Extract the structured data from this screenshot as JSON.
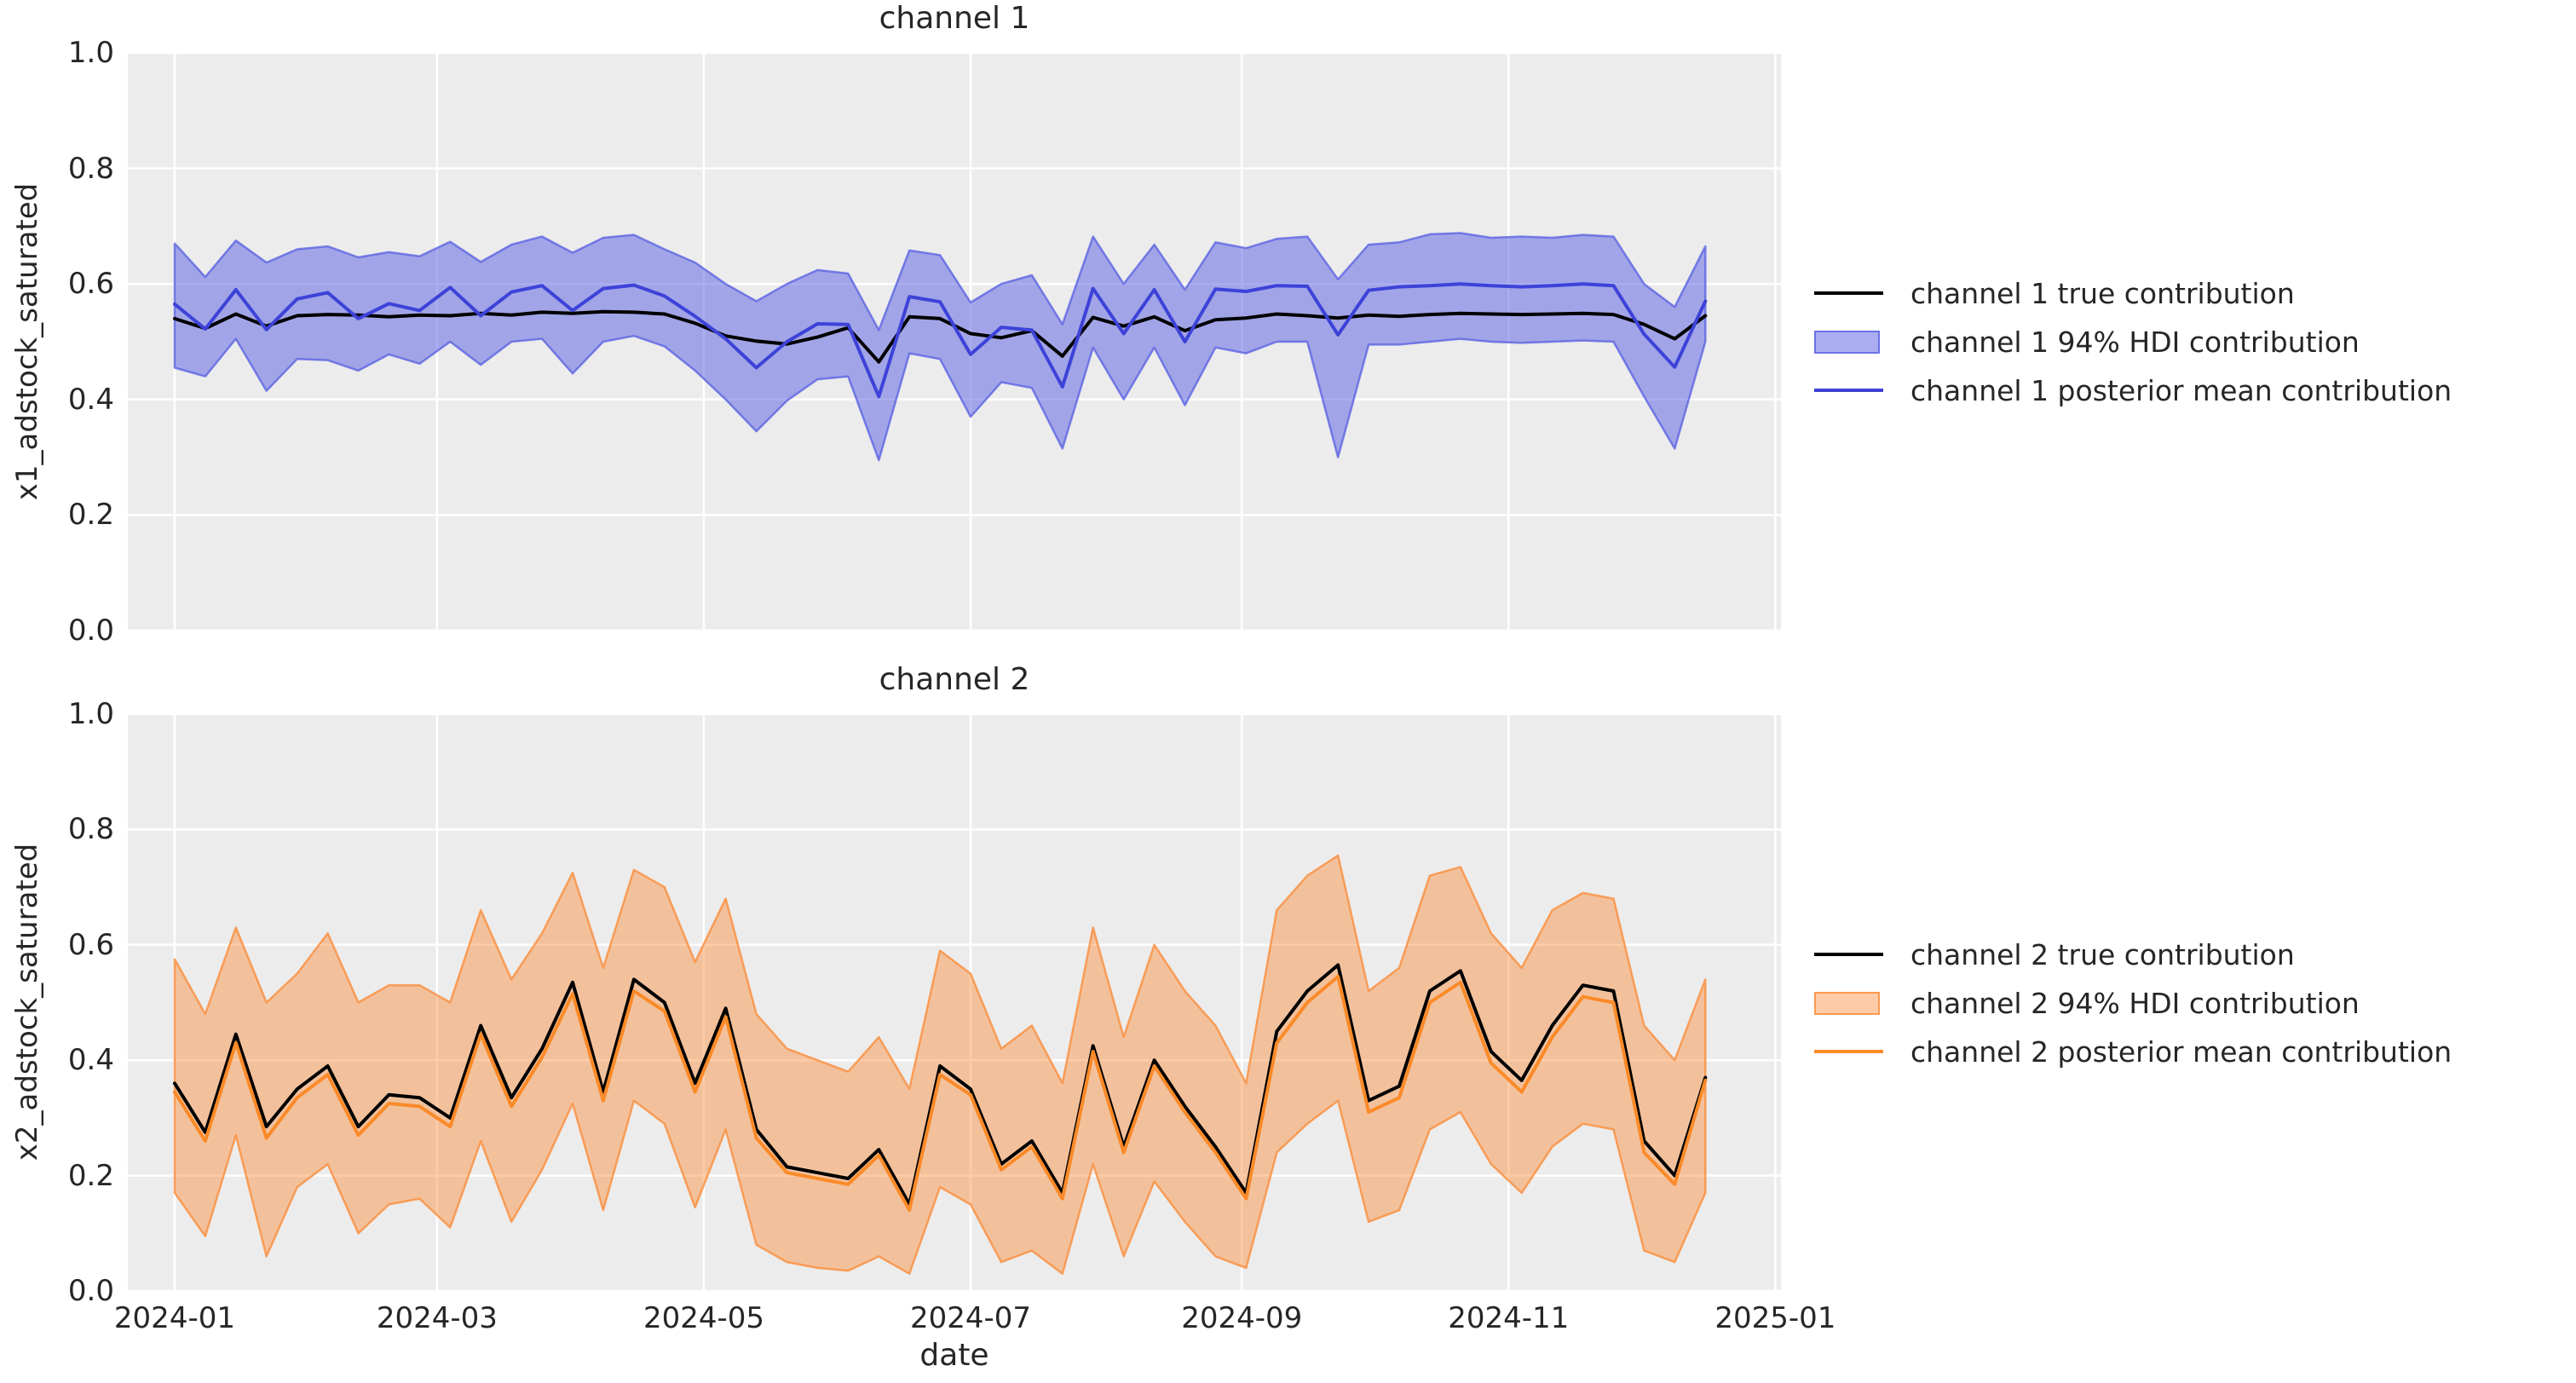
{
  "chart_data": [
    {
      "type": "line",
      "title": "channel 1",
      "ylabel": "x1_adstock_saturated",
      "ylim": [
        0.0,
        1.0
      ],
      "yticks": [
        0.0,
        0.2,
        0.4,
        0.6,
        0.8,
        1.0
      ],
      "ytick_labels": [
        "0.0",
        "0.2",
        "0.4",
        "0.6",
        "0.8",
        "1.0"
      ],
      "xtick_weeks": [
        0,
        8.571,
        17.286,
        26.0,
        34.857,
        43.571,
        52.286
      ],
      "xlim_weeks": [
        -1.53,
        52.47
      ],
      "grid": true,
      "legend_position": "center right, outside axes",
      "x_dates": [
        "2024-01-01",
        "2024-01-08",
        "2024-01-15",
        "2024-01-22",
        "2024-01-29",
        "2024-02-05",
        "2024-02-12",
        "2024-02-19",
        "2024-02-26",
        "2024-03-04",
        "2024-03-11",
        "2024-03-18",
        "2024-03-25",
        "2024-04-01",
        "2024-04-08",
        "2024-04-15",
        "2024-04-22",
        "2024-04-29",
        "2024-05-06",
        "2024-05-13",
        "2024-05-20",
        "2024-05-27",
        "2024-06-03",
        "2024-06-10",
        "2024-06-17",
        "2024-06-24",
        "2024-07-01",
        "2024-07-08",
        "2024-07-15",
        "2024-07-22",
        "2024-07-29",
        "2024-08-05",
        "2024-08-12",
        "2024-08-19",
        "2024-08-26",
        "2024-09-02",
        "2024-09-09",
        "2024-09-16",
        "2024-09-23",
        "2024-09-30",
        "2024-10-07",
        "2024-10-14",
        "2024-10-21",
        "2024-10-28",
        "2024-11-04",
        "2024-11-11",
        "2024-11-18",
        "2024-11-25",
        "2024-12-02",
        "2024-12-09",
        "2024-12-16"
      ],
      "series": [
        {
          "name": "channel 1 true contribution",
          "type": "line",
          "color": "#000000",
          "values": [
            0.54,
            0.523,
            0.548,
            0.527,
            0.545,
            0.547,
            0.546,
            0.543,
            0.546,
            0.545,
            0.549,
            0.546,
            0.551,
            0.549,
            0.552,
            0.551,
            0.548,
            0.532,
            0.51,
            0.501,
            0.496,
            0.508,
            0.524,
            0.465,
            0.543,
            0.54,
            0.514,
            0.507,
            0.519,
            0.475,
            0.542,
            0.527,
            0.543,
            0.519,
            0.538,
            0.541,
            0.548,
            0.545,
            0.541,
            0.546,
            0.544,
            0.547,
            0.549,
            0.548,
            0.547,
            0.548,
            0.549,
            0.547,
            0.53,
            0.505,
            0.545
          ]
        },
        {
          "name": "channel 1 94% HDI contribution",
          "type": "band",
          "fill": "rgba(86,94,225,0.5)",
          "edge": "rgba(86,94,225,0.75)",
          "upper": [
            0.67,
            0.612,
            0.675,
            0.637,
            0.66,
            0.665,
            0.646,
            0.655,
            0.648,
            0.673,
            0.638,
            0.668,
            0.682,
            0.654,
            0.68,
            0.685,
            0.66,
            0.637,
            0.6,
            0.57,
            0.6,
            0.624,
            0.618,
            0.52,
            0.658,
            0.65,
            0.568,
            0.6,
            0.615,
            0.53,
            0.682,
            0.6,
            0.668,
            0.59,
            0.672,
            0.662,
            0.678,
            0.682,
            0.608,
            0.668,
            0.672,
            0.686,
            0.688,
            0.68,
            0.682,
            0.68,
            0.685,
            0.682,
            0.6,
            0.56,
            0.665
          ],
          "lower": [
            0.455,
            0.44,
            0.505,
            0.415,
            0.47,
            0.468,
            0.45,
            0.478,
            0.462,
            0.5,
            0.46,
            0.5,
            0.505,
            0.445,
            0.5,
            0.51,
            0.492,
            0.45,
            0.4,
            0.345,
            0.398,
            0.435,
            0.44,
            0.295,
            0.48,
            0.47,
            0.37,
            0.43,
            0.42,
            0.315,
            0.49,
            0.4,
            0.49,
            0.39,
            0.49,
            0.48,
            0.5,
            0.5,
            0.3,
            0.495,
            0.495,
            0.5,
            0.505,
            0.5,
            0.498,
            0.5,
            0.502,
            0.5,
            0.405,
            0.315,
            0.5
          ]
        },
        {
          "name": "channel 1 posterior mean contribution",
          "type": "line",
          "color": "#3d42d8",
          "values": [
            0.565,
            0.522,
            0.59,
            0.521,
            0.574,
            0.585,
            0.54,
            0.566,
            0.554,
            0.594,
            0.545,
            0.586,
            0.597,
            0.554,
            0.592,
            0.598,
            0.579,
            0.544,
            0.505,
            0.455,
            0.5,
            0.531,
            0.53,
            0.405,
            0.578,
            0.569,
            0.478,
            0.525,
            0.52,
            0.422,
            0.592,
            0.514,
            0.59,
            0.5,
            0.591,
            0.587,
            0.597,
            0.596,
            0.512,
            0.589,
            0.595,
            0.597,
            0.6,
            0.597,
            0.595,
            0.597,
            0.6,
            0.597,
            0.513,
            0.456,
            0.57
          ]
        }
      ]
    },
    {
      "type": "line",
      "title": "channel 2",
      "ylabel": "x2_adstock_saturated",
      "xlabel": "date",
      "ylim": [
        0.0,
        1.0
      ],
      "yticks": [
        0.0,
        0.2,
        0.4,
        0.6,
        0.8,
        1.0
      ],
      "ytick_labels": [
        "0.0",
        "0.2",
        "0.4",
        "0.6",
        "0.8",
        "1.0"
      ],
      "xtick_weeks": [
        0,
        8.571,
        17.286,
        26.0,
        34.857,
        43.571,
        52.286
      ],
      "xtick_labels": [
        "2024-01",
        "2024-03",
        "2024-05",
        "2024-07",
        "2024-09",
        "2024-11",
        "2025-01"
      ],
      "xlim_weeks": [
        -1.53,
        52.47
      ],
      "grid": true,
      "legend_position": "center right, outside axes",
      "x_dates": [
        "2024-01-01",
        "2024-01-08",
        "2024-01-15",
        "2024-01-22",
        "2024-01-29",
        "2024-02-05",
        "2024-02-12",
        "2024-02-19",
        "2024-02-26",
        "2024-03-04",
        "2024-03-11",
        "2024-03-18",
        "2024-03-25",
        "2024-04-01",
        "2024-04-08",
        "2024-04-15",
        "2024-04-22",
        "2024-04-29",
        "2024-05-06",
        "2024-05-13",
        "2024-05-20",
        "2024-05-27",
        "2024-06-03",
        "2024-06-10",
        "2024-06-17",
        "2024-06-24",
        "2024-07-01",
        "2024-07-08",
        "2024-07-15",
        "2024-07-22",
        "2024-07-29",
        "2024-08-05",
        "2024-08-12",
        "2024-08-19",
        "2024-08-26",
        "2024-09-02",
        "2024-09-09",
        "2024-09-16",
        "2024-09-23",
        "2024-09-30",
        "2024-10-07",
        "2024-10-14",
        "2024-10-21",
        "2024-10-28",
        "2024-11-04",
        "2024-11-11",
        "2024-11-18",
        "2024-11-25",
        "2024-12-02",
        "2024-12-09",
        "2024-12-16"
      ],
      "series": [
        {
          "name": "channel 2 true contribution",
          "type": "line",
          "color": "#000000",
          "values": [
            0.36,
            0.275,
            0.445,
            0.285,
            0.35,
            0.39,
            0.285,
            0.34,
            0.335,
            0.3,
            0.46,
            0.335,
            0.42,
            0.535,
            0.345,
            0.54,
            0.5,
            0.36,
            0.49,
            0.28,
            0.215,
            0.205,
            0.195,
            0.245,
            0.15,
            0.39,
            0.35,
            0.22,
            0.26,
            0.17,
            0.425,
            0.25,
            0.4,
            0.32,
            0.25,
            0.17,
            0.45,
            0.52,
            0.565,
            0.33,
            0.355,
            0.52,
            0.555,
            0.415,
            0.365,
            0.46,
            0.53,
            0.52,
            0.26,
            0.2,
            0.37
          ]
        },
        {
          "name": "channel 2 94% HDI contribution",
          "type": "band",
          "fill": "rgba(250,141,60,0.45)",
          "edge": "rgba(250,141,60,0.8)",
          "upper": [
            0.575,
            0.48,
            0.63,
            0.5,
            0.55,
            0.62,
            0.5,
            0.53,
            0.53,
            0.5,
            0.66,
            0.54,
            0.62,
            0.725,
            0.56,
            0.73,
            0.7,
            0.57,
            0.68,
            0.48,
            0.42,
            0.4,
            0.38,
            0.44,
            0.35,
            0.59,
            0.55,
            0.42,
            0.46,
            0.36,
            0.63,
            0.44,
            0.6,
            0.52,
            0.46,
            0.36,
            0.66,
            0.72,
            0.755,
            0.52,
            0.56,
            0.72,
            0.735,
            0.62,
            0.56,
            0.66,
            0.69,
            0.68,
            0.46,
            0.4,
            0.54
          ],
          "lower": [
            0.17,
            0.095,
            0.27,
            0.06,
            0.18,
            0.22,
            0.1,
            0.15,
            0.16,
            0.11,
            0.26,
            0.12,
            0.21,
            0.325,
            0.14,
            0.33,
            0.29,
            0.145,
            0.28,
            0.08,
            0.05,
            0.04,
            0.035,
            0.06,
            0.03,
            0.18,
            0.15,
            0.05,
            0.07,
            0.03,
            0.22,
            0.06,
            0.19,
            0.12,
            0.06,
            0.04,
            0.24,
            0.29,
            0.33,
            0.12,
            0.14,
            0.28,
            0.31,
            0.22,
            0.17,
            0.25,
            0.29,
            0.28,
            0.07,
            0.05,
            0.17
          ]
        },
        {
          "name": "channel 2 posterior mean contribution",
          "type": "line",
          "color": "#fb8a28",
          "values": [
            0.345,
            0.26,
            0.43,
            0.265,
            0.335,
            0.375,
            0.27,
            0.325,
            0.32,
            0.285,
            0.445,
            0.32,
            0.405,
            0.515,
            0.33,
            0.52,
            0.485,
            0.345,
            0.475,
            0.265,
            0.205,
            0.195,
            0.185,
            0.235,
            0.14,
            0.375,
            0.34,
            0.21,
            0.25,
            0.16,
            0.415,
            0.24,
            0.39,
            0.31,
            0.24,
            0.16,
            0.43,
            0.5,
            0.545,
            0.31,
            0.335,
            0.5,
            0.535,
            0.395,
            0.345,
            0.44,
            0.51,
            0.5,
            0.24,
            0.185,
            0.365
          ]
        }
      ]
    }
  ]
}
